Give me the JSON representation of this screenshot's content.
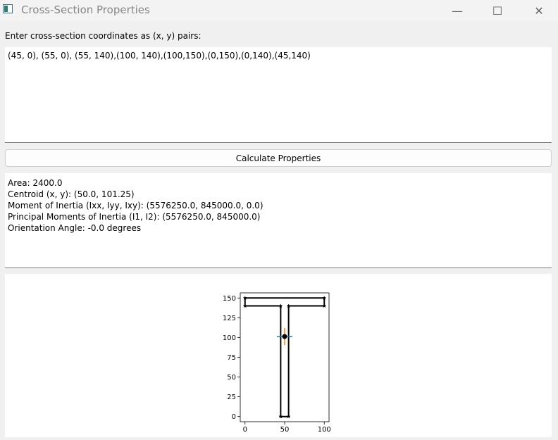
{
  "window": {
    "title": "Cross-Section Properties",
    "minimize_glyph": "—",
    "maximize_glyph": "☐",
    "close_glyph": "✕"
  },
  "input": {
    "prompt": "Enter cross-section coordinates as (x, y) pairs:",
    "value": "(45, 0), (55, 0), (55, 140),(100, 140),(100,150),(0,150),(0,140),(45,140)"
  },
  "calculate_button": {
    "label": "Calculate Properties"
  },
  "results": {
    "area": "Area: 2400.0",
    "centroid": "Centroid (x, y): (50.0, 101.25)",
    "moment_of_inertia": "Moment of Inertia (Ixx, Iyy, Ixy): (5576250.0, 845000.0, 0.0)",
    "principal_moments": "Principal Moments of Inertia (I1, I2): (5576250.0, 845000.0)",
    "orientation": "Orientation Angle: -0.0 degrees"
  },
  "chart_data": {
    "type": "line",
    "series": [
      {
        "points": [
          [
            45,
            0
          ],
          [
            55,
            0
          ],
          [
            55,
            140
          ],
          [
            100,
            140
          ],
          [
            100,
            150
          ],
          [
            0,
            150
          ],
          [
            0,
            140
          ],
          [
            45,
            140
          ],
          [
            45,
            0
          ]
        ],
        "color": "#000000",
        "marker": "star"
      }
    ],
    "centroid": [
      50.0,
      101.25
    ],
    "principal_axes_colors": [
      "#1f77b4",
      "#ff7f0e"
    ],
    "xlim": [
      -6,
      106
    ],
    "ylim": [
      -6.5,
      156.5
    ],
    "x_ticks": [
      0,
      50,
      100
    ],
    "y_ticks": [
      0,
      25,
      50,
      75,
      100,
      125,
      150
    ],
    "grid": false
  }
}
